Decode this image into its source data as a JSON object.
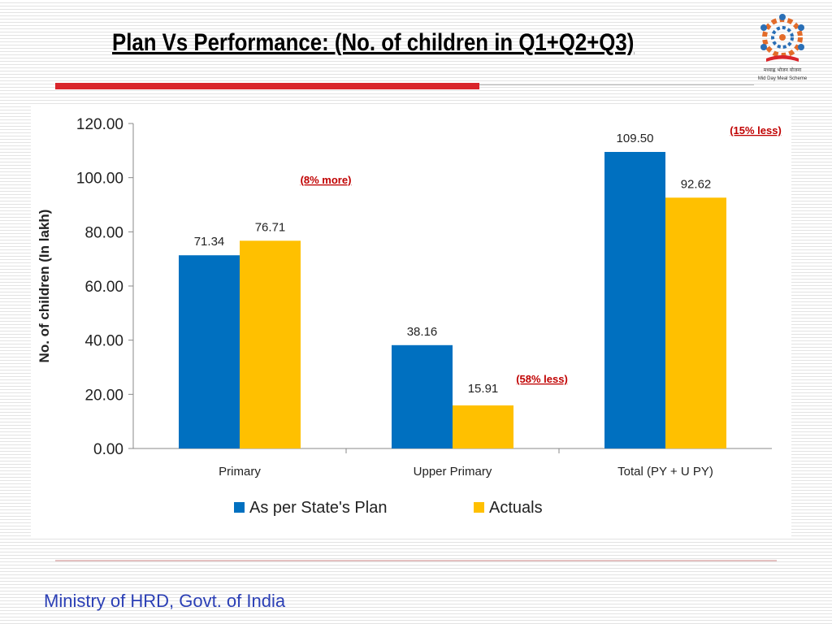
{
  "slide": {
    "title": "Plan Vs Performance: (No. of children in Q1+Q2+Q3)",
    "footer": "Ministry of HRD, Govt. of India",
    "logo_caption": "मध्याह्न भोजन योजना",
    "logo_caption_en": "Mid Day Meal Scheme"
  },
  "colors": {
    "plan": "#0070c0",
    "actuals": "#ffc000",
    "accent_red": "#d9252b",
    "annotation": "#c00000",
    "footer_text": "#2b3fb5"
  },
  "chart_data": {
    "type": "bar",
    "title": "",
    "xlabel": "",
    "ylabel": "No. of children (In lakh)",
    "ylim": [
      0,
      120
    ],
    "yticks": [
      "0.00",
      "20.00",
      "40.00",
      "60.00",
      "80.00",
      "100.00",
      "120.00"
    ],
    "grid": false,
    "legend_position": "bottom",
    "categories": [
      "Primary",
      "Upper Primary",
      "Total (PY + U PY)"
    ],
    "series": [
      {
        "name": "As per State's Plan",
        "values": [
          71.34,
          38.16,
          109.5
        ],
        "labels": [
          "71.34",
          "38.16",
          "109.50"
        ]
      },
      {
        "name": "Actuals",
        "values": [
          76.71,
          15.91,
          92.62
        ],
        "labels": [
          "76.71",
          "15.91",
          "92.62"
        ]
      }
    ],
    "annotations": [
      "(8% more)",
      "(58% less)",
      "(15% less)"
    ]
  }
}
